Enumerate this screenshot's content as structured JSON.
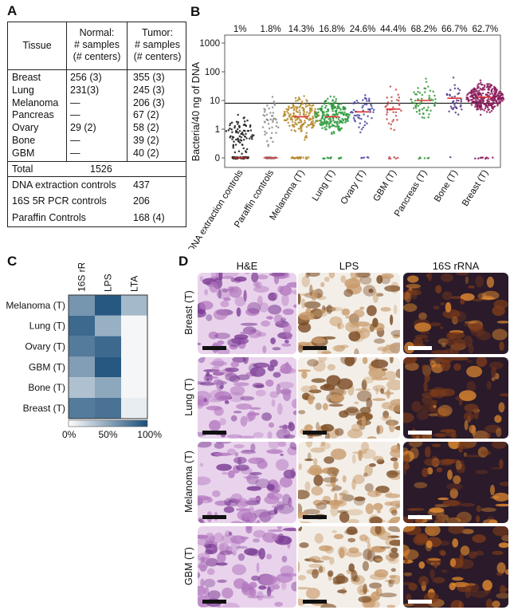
{
  "panel_labels": [
    "A",
    "B",
    "C",
    "D"
  ],
  "panel_a": {
    "col_headers": {
      "tissue": "Tissue",
      "normal": [
        "Normal:",
        "# samples",
        "(# centers)"
      ],
      "tumor": [
        "Tumor:",
        "# samples",
        "(# centers)"
      ]
    },
    "rows": [
      {
        "tissue": "Breast",
        "normal": "256 (3)",
        "tumor": "355 (3)"
      },
      {
        "tissue": "Lung",
        "normal": "231(3)",
        "tumor": "245 (3)"
      },
      {
        "tissue": "Melanoma",
        "normal": "—",
        "tumor": "206 (3)"
      },
      {
        "tissue": "Pancreas",
        "normal": "—",
        "tumor": "67 (2)"
      },
      {
        "tissue": "Ovary",
        "normal": "29 (2)",
        "tumor": "58 (2)"
      },
      {
        "tissue": "Bone",
        "normal": "—",
        "tumor": "39 (2)"
      },
      {
        "tissue": "GBM",
        "normal": "—",
        "tumor": "40 (2)"
      }
    ],
    "total": {
      "label": "Total",
      "value": "1526"
    },
    "controls": [
      {
        "label": "DNA extraction controls",
        "value": "437"
      },
      {
        "label": "16S 5R PCR controls",
        "value": "206"
      },
      {
        "label": "Paraffin Controls",
        "value": "168 (4)"
      }
    ]
  },
  "chart_data": [
    {
      "type": "scatter",
      "ylabel": "Bacteria/40 ng of DNA",
      "yscale": "log",
      "ytick_labels": [
        "0",
        "1",
        "10",
        "100",
        "1000"
      ],
      "categories": [
        "DNA extraction controls",
        "Paraffin controls",
        "Melanoma (T)",
        "Lung (T)",
        "Ovary (T)",
        "GBM (T)",
        "Pancreas (T)",
        "Bone (T)",
        "Breast (T)"
      ],
      "percent_labels": [
        "1%",
        "1.8%",
        "14.3%",
        "16.8%",
        "24.6%",
        "44.4%",
        "68.2%",
        "66.7%",
        "62.7%"
      ],
      "medians": [
        0,
        0,
        2.7,
        2.7,
        4,
        5,
        10,
        12,
        13
      ],
      "threshold": 8,
      "colors": [
        "#1a1a1a",
        "#8c8c8c",
        "#b58a2a",
        "#2e9a3c",
        "#4a4aa0",
        "#c44a4a",
        "#3a9a3a",
        "#5a3a8a",
        "#8a1a5a"
      ],
      "median_color": "#e03030",
      "grid": false
    },
    {
      "type": "heatmap",
      "columns": [
        "16S rRNA",
        "LPS",
        "LTA"
      ],
      "rows": [
        "Melanoma (T)",
        "Lung (T)",
        "Ovary (T)",
        "GBM (T)",
        "Bone (T)",
        "Breast (T)"
      ],
      "values": [
        [
          60,
          95,
          40
        ],
        [
          85,
          45,
          5
        ],
        [
          75,
          85,
          5
        ],
        [
          55,
          95,
          5
        ],
        [
          35,
          50,
          5
        ],
        [
          75,
          80,
          10
        ]
      ],
      "colorbar_ticks": [
        "0%",
        "50%",
        "100%"
      ],
      "colormap": [
        "#ffffff",
        "#1b4f7a"
      ]
    }
  ],
  "panel_d": {
    "col_headers": [
      "H&E",
      "LPS",
      "16S rRNA"
    ],
    "row_labels": [
      "Breast (T)",
      "Lung (T)",
      "Melanoma (T)",
      "GBM (T)"
    ],
    "stain_colors": {
      "he": [
        "#e9d3ec",
        "#b47ac0",
        "#7a3a93"
      ],
      "lps": [
        "#f3efe8",
        "#c89a6a",
        "#7a4a22"
      ],
      "rna": [
        "#2a1a2a",
        "#7a3a1a",
        "#e08a30"
      ]
    }
  }
}
